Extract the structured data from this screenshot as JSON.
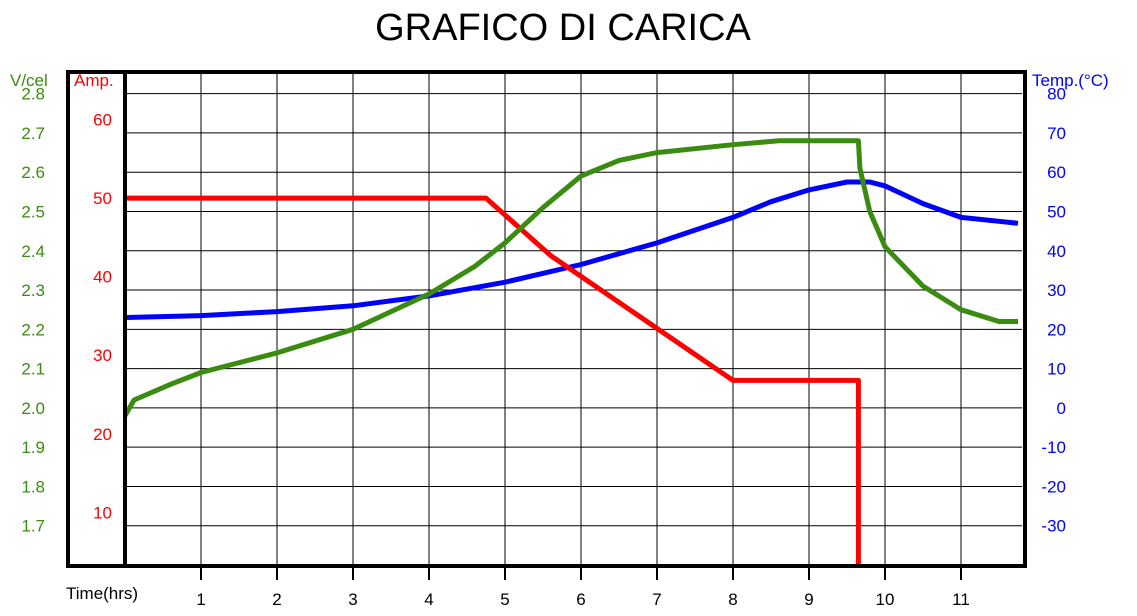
{
  "chart_data": {
    "type": "line",
    "title": "GRAFICO DI CARICA",
    "xlabel": "Time(hrs)",
    "x_ticks": [
      "1",
      "2",
      "3",
      "4",
      "5",
      "6",
      "7",
      "8",
      "9",
      "10",
      "11"
    ],
    "xlim": [
      0,
      11.75
    ],
    "axes": {
      "voltage": {
        "label": "V/cel",
        "color": "#3a8c10",
        "ticks": [
          "2.8",
          "2.7",
          "2.6",
          "2.5",
          "2.4",
          "2.3",
          "2.2",
          "2.1",
          "2.0",
          "1.9",
          "1.8",
          "1.7"
        ],
        "ylim": [
          1.6,
          2.85
        ]
      },
      "current": {
        "label": "Amp.",
        "color": "#ff0000",
        "ticks": [
          "60",
          "50",
          "40",
          "30",
          "20",
          "10"
        ],
        "ylim": [
          3.3,
          65.8
        ]
      },
      "temperature": {
        "label": "Temp.(°C)",
        "color": "#0000ff",
        "ticks": [
          "80",
          "70",
          "60",
          "50",
          "40",
          "30",
          "20",
          "10",
          "0",
          "-10",
          "-20",
          "-30"
        ],
        "ylim": [
          -40,
          85
        ]
      }
    },
    "grid": true,
    "series": [
      {
        "axis": "voltage",
        "color": "#3a8c10",
        "x": [
          0,
          0.12,
          0.6,
          1.0,
          2.0,
          3.0,
          4.0,
          4.6,
          5.0,
          5.5,
          6.0,
          6.5,
          7.0,
          8.0,
          8.6,
          9.65,
          9.67,
          9.8,
          10.0,
          10.5,
          11.0,
          11.5,
          11.75
        ],
        "values": [
          1.98,
          2.02,
          2.06,
          2.09,
          2.14,
          2.2,
          2.29,
          2.36,
          2.42,
          2.51,
          2.59,
          2.63,
          2.65,
          2.67,
          2.68,
          2.68,
          2.61,
          2.5,
          2.41,
          2.31,
          2.25,
          2.22,
          2.22
        ]
      },
      {
        "axis": "current",
        "color": "#ff0000",
        "x": [
          0,
          4.75,
          5.6,
          8.0,
          9.65,
          9.65
        ],
        "values": [
          50,
          50,
          42.7,
          26.8,
          26.8,
          3.3
        ]
      },
      {
        "axis": "temperature",
        "color": "#0000ff",
        "x": [
          0,
          1.0,
          2.0,
          3.0,
          4.0,
          5.0,
          6.0,
          7.0,
          8.0,
          8.5,
          9.0,
          9.5,
          9.8,
          10.0,
          10.5,
          11.0,
          11.5,
          11.75
        ],
        "values": [
          23,
          23.5,
          24.5,
          26,
          28.5,
          32,
          36.5,
          42,
          48.5,
          52.5,
          55.5,
          57.5,
          57.5,
          56.5,
          52,
          48.5,
          47.5,
          47
        ]
      }
    ]
  }
}
